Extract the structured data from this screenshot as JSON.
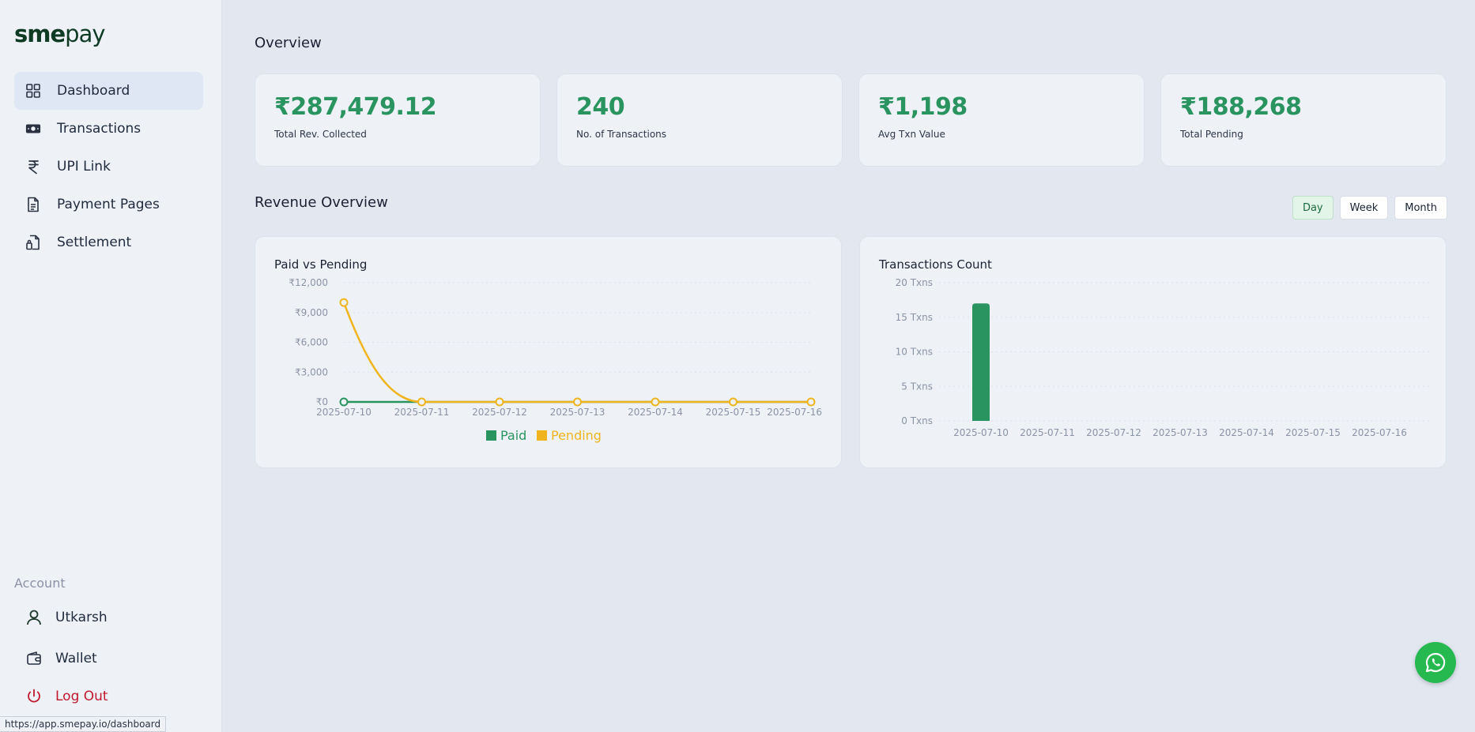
{
  "brand": {
    "logo_bold": "sme",
    "logo_light": "pay"
  },
  "sidebar": {
    "items": [
      {
        "label": "Dashboard",
        "icon": "grid-icon",
        "active": true
      },
      {
        "label": "Transactions",
        "icon": "cash-icon"
      },
      {
        "label": "UPI Link",
        "icon": "rupee-icon"
      },
      {
        "label": "Payment Pages",
        "icon": "document-icon"
      },
      {
        "label": "Settlement",
        "icon": "settlement-icon"
      }
    ],
    "account_title": "Account",
    "account": {
      "user": "Utkarsh",
      "wallet": "Wallet",
      "logout": "Log Out"
    }
  },
  "status_url": "https://app.smepay.io/dashboard",
  "overview": {
    "title": "Overview",
    "stats": [
      {
        "value": "₹287,479.12",
        "label": "Total Rev. Collected"
      },
      {
        "value": "240",
        "label": "No. of Transactions"
      },
      {
        "value": "₹1,198",
        "label": "Avg Txn Value"
      },
      {
        "value": "₹188,268",
        "label": "Total Pending"
      }
    ]
  },
  "revenue": {
    "title": "Revenue Overview",
    "toggles": [
      "Day",
      "Week",
      "Month"
    ],
    "active_toggle": "Day"
  },
  "colors": {
    "accent_green": "#2a9460",
    "pending_yellow": "#f0b51e",
    "logout_red": "#c0182e"
  },
  "chart_data": [
    {
      "type": "line",
      "title": "Paid vs Pending",
      "x": [
        "2025-07-10",
        "2025-07-11",
        "2025-07-12",
        "2025-07-13",
        "2025-07-14",
        "2025-07-15",
        "2025-07-16"
      ],
      "series": [
        {
          "name": "Paid",
          "color": "#2a9460",
          "values": [
            0,
            0,
            0,
            0,
            0,
            0,
            0
          ]
        },
        {
          "name": "Pending",
          "color": "#f0b51e",
          "values": [
            10000,
            0,
            0,
            0,
            0,
            0,
            0
          ]
        }
      ],
      "yticks": [
        "₹0",
        "₹3,000",
        "₹6,000",
        "₹9,000",
        "₹12,000"
      ],
      "ylim": [
        0,
        12000
      ],
      "legend": "bottom"
    },
    {
      "type": "bar",
      "title": "Transactions Count",
      "categories": [
        "2025-07-10",
        "2025-07-11",
        "2025-07-12",
        "2025-07-13",
        "2025-07-14",
        "2025-07-15",
        "2025-07-16"
      ],
      "values": [
        17,
        0,
        0,
        0,
        0,
        0,
        0
      ],
      "color": "#2a9460",
      "yticks": [
        "0 Txns",
        "5 Txns",
        "10 Txns",
        "15 Txns",
        "20 Txns"
      ],
      "ylim": [
        0,
        20
      ]
    }
  ]
}
